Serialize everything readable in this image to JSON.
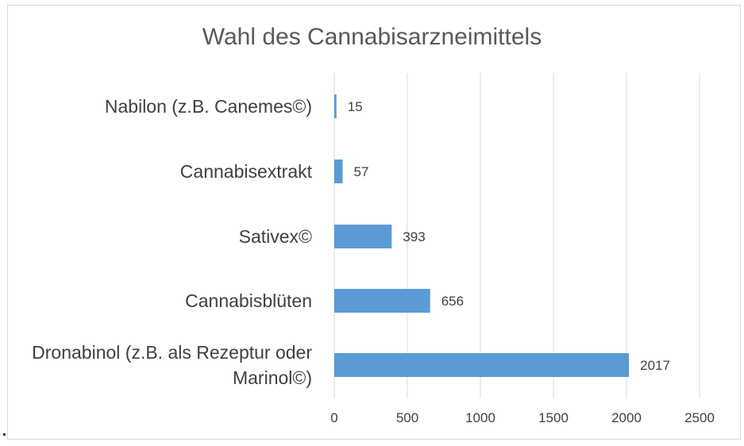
{
  "chart_data": {
    "type": "bar",
    "orientation": "horizontal",
    "title": "Wahl des Cannabisarzneimittels",
    "categories": [
      [
        "Nabilon (z.B. Canemes©)"
      ],
      [
        "Cannabisextrakt"
      ],
      [
        "Sativex©"
      ],
      [
        "Cannabisblüten"
      ],
      [
        "Dronabinol (z.B. als Rezeptur oder",
        "Marinol©)"
      ]
    ],
    "values": [
      15,
      57,
      393,
      656,
      2017
    ],
    "data_labels": [
      "15",
      "57",
      "393",
      "656",
      "2017"
    ],
    "xlim": [
      0,
      2500
    ],
    "ticks": [
      0,
      500,
      1000,
      1500,
      2000,
      2500
    ],
    "tick_labels": [
      "0",
      "500",
      "1000",
      "1500",
      "2000",
      "2500"
    ],
    "xlabel": "",
    "ylabel": "",
    "grid": true,
    "legend": "none",
    "colors": {
      "bar": "#5b9bd5",
      "grid": "#d9d9d9",
      "text": "#404040",
      "title": "#595959"
    }
  }
}
